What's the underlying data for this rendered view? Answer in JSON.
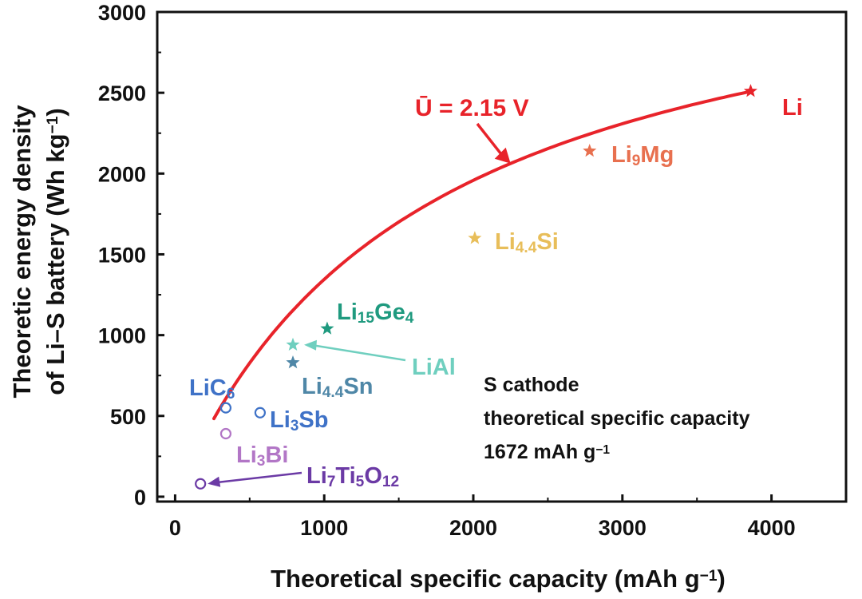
{
  "chart_data": {
    "type": "scatter",
    "xlabel": "Theoretical specific capacity (mAh g",
    "xlabel_sup": "−1",
    "xlabel_end": ")",
    "ylabel_line1": "Theoretic energy density",
    "ylabel_line2": "of Li–S battery (Wh kg",
    "ylabel_sup": "−1",
    "ylabel_end": ")",
    "xlim": [
      -120,
      4500
    ],
    "ylim": [
      -30,
      3000
    ],
    "xticks": [
      "0",
      "1000",
      "2000",
      "3000",
      "4000"
    ],
    "xtick_values": [
      0,
      1000,
      2000,
      3000,
      4000
    ],
    "yticks": [
      "0",
      "500",
      "1000",
      "1500",
      "2000",
      "2500",
      "3000"
    ],
    "ytick_values": [
      0,
      500,
      1000,
      1500,
      2000,
      2500,
      3000
    ],
    "curve": {
      "label_prefix": "Ū = 2.15 V",
      "voltage": 2.15,
      "sulfur_capacity": 1672,
      "x_start": 260,
      "x_end": 3860,
      "color": "#e8232a"
    },
    "curve_arrow_at_x": 2250,
    "points": [
      {
        "name": "Li",
        "parts": [
          [
            "Li",
            ""
          ]
        ],
        "x": 3860,
        "y": 2510,
        "marker": "star",
        "color": "#e8232a"
      },
      {
        "name": "Li9Mg",
        "parts": [
          [
            "Li",
            "9"
          ],
          [
            "Mg",
            ""
          ]
        ],
        "x": 2780,
        "y": 2140,
        "marker": "star",
        "color": "#e8704f"
      },
      {
        "name": "Li4.4Si",
        "parts": [
          [
            "Li",
            "4.4"
          ],
          [
            "Si",
            ""
          ]
        ],
        "x": 2010,
        "y": 1600,
        "marker": "star",
        "color": "#e8be5a"
      },
      {
        "name": "Li15Ge4",
        "parts": [
          [
            "Li",
            "15"
          ],
          [
            "Ge",
            "4"
          ]
        ],
        "x": 1020,
        "y": 1040,
        "marker": "star",
        "color": "#1f9a7f"
      },
      {
        "name": "LiAl",
        "parts": [
          [
            "LiAl",
            ""
          ]
        ],
        "x": 790,
        "y": 940,
        "marker": "star",
        "color": "#6fcfbf"
      },
      {
        "name": "Li4.4Sn",
        "parts": [
          [
            "Li",
            "4.4"
          ],
          [
            "Sn",
            ""
          ]
        ],
        "x": 790,
        "y": 830,
        "marker": "star",
        "color": "#4f87a7"
      },
      {
        "name": "LiC6",
        "parts": [
          [
            "LiC",
            "6"
          ]
        ],
        "x": 340,
        "y": 550,
        "marker": "circle",
        "color": "#3f72c7"
      },
      {
        "name": "Li3Sb",
        "parts": [
          [
            "Li",
            "3"
          ],
          [
            "Sb",
            ""
          ]
        ],
        "x": 570,
        "y": 520,
        "marker": "circle",
        "color": "#3f72c7"
      },
      {
        "name": "Li3Bi",
        "parts": [
          [
            "Li",
            "3"
          ],
          [
            "Bi",
            ""
          ]
        ],
        "x": 340,
        "y": 390,
        "marker": "circle",
        "color": "#b276c6"
      },
      {
        "name": "Li7Ti5O12",
        "parts": [
          [
            "Li",
            "7"
          ],
          [
            "Ti",
            "5"
          ],
          [
            "O",
            "12"
          ]
        ],
        "x": 170,
        "y": 80,
        "marker": "circle",
        "color": "#6b3aa5"
      }
    ],
    "annotation_lines": [
      "S cathode",
      "theoretical specific capacity",
      "1672 mAh g"
    ],
    "annotation_sup": "−1"
  }
}
